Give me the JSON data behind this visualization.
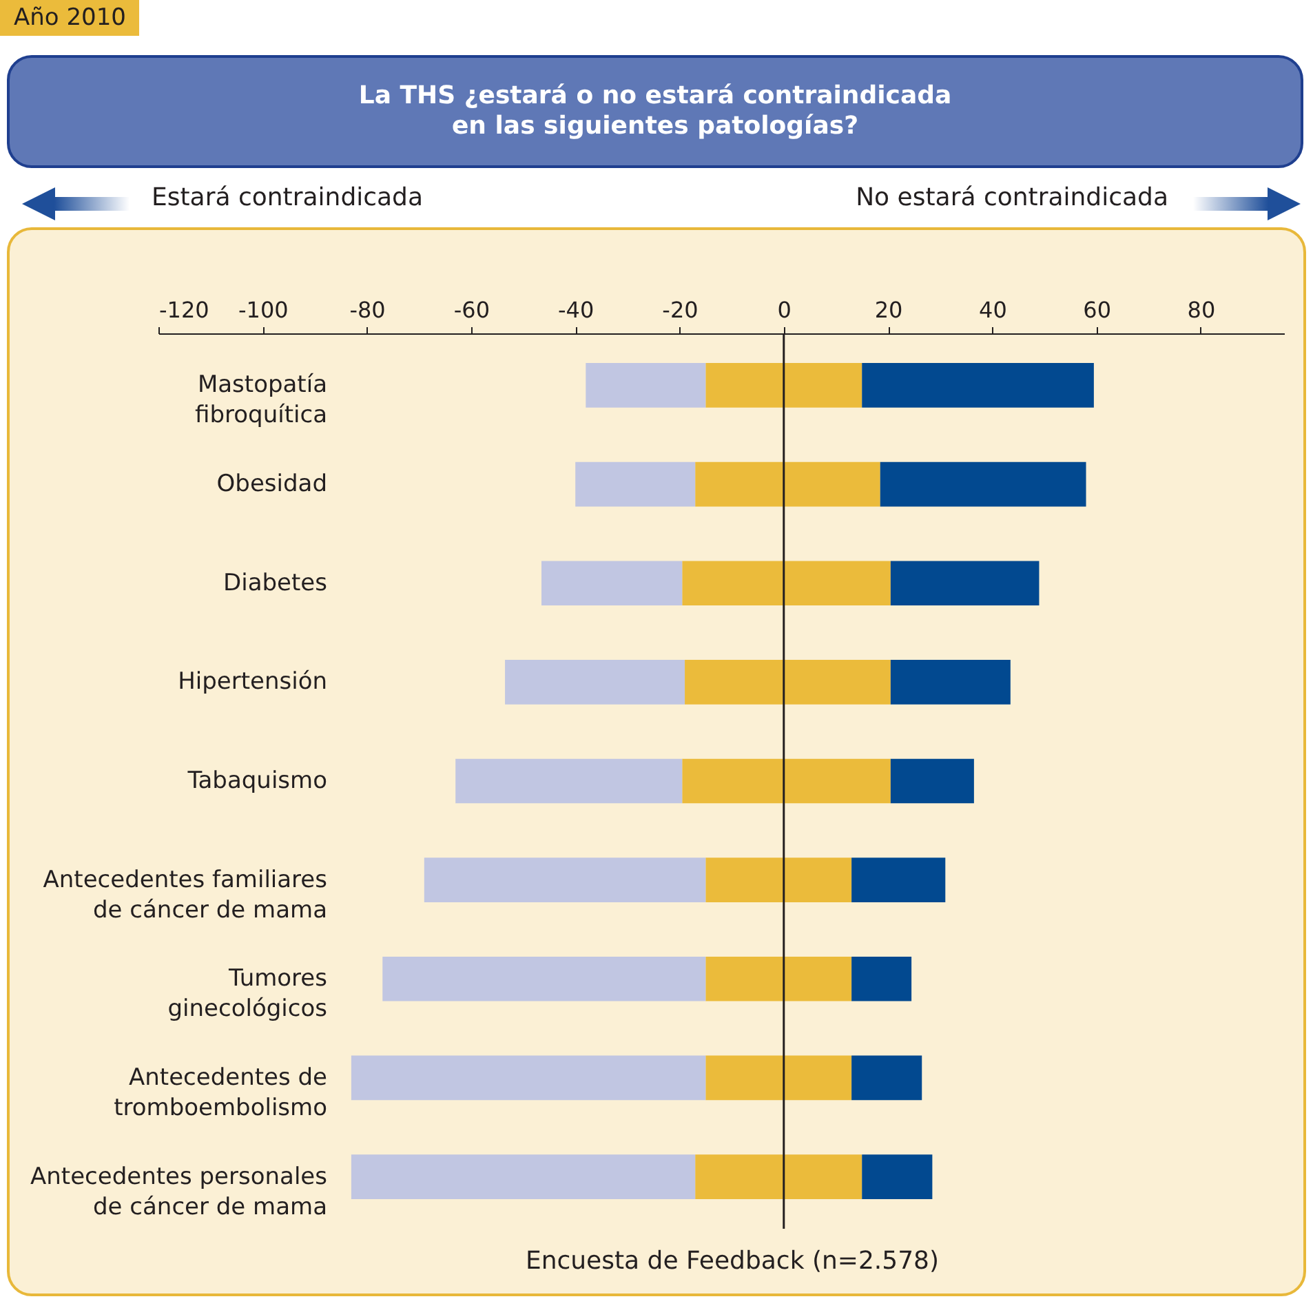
{
  "chart_data": {
    "type": "bar",
    "orientation": "horizontal",
    "stacked": true,
    "title": "La THS ¿estará o no estará contraindicada\nen las siguientes patologías?",
    "annotations": [
      "Año 2010",
      "Estará contraindicada",
      "No estará contraindicada",
      "Encuesta de Feedback (n=2.578)"
    ],
    "categories": [
      "Mastopatía\nfibroquítica",
      "Obesidad",
      "Diabetes",
      "Hipertensión",
      "Tabaquismo",
      "Antecedentes familiares\nde cáncer de mama",
      "Tumores\nginecológicos",
      "Antecedentes de\ntromboembolismo",
      "Antecedentes personales\nde cáncer de mama"
    ],
    "series": [
      {
        "color": "#ebbb3b",
        "values": [
          -15,
          -17,
          -19.5,
          -19,
          -19.5,
          -15,
          -15,
          -15,
          -17
        ]
      },
      {
        "color": "#c1c6e2",
        "values": [
          -23,
          -23,
          -27,
          -34.5,
          -43.5,
          -54,
          -62,
          -68,
          -66
        ]
      },
      {
        "color": "#ebbb3b",
        "values": [
          15,
          18.5,
          20.5,
          20.5,
          20.5,
          13,
          13,
          13,
          15
        ]
      },
      {
        "color": "#024990",
        "values": [
          44.5,
          39.5,
          28.5,
          23,
          16,
          18,
          11.5,
          13.5,
          13.5
        ]
      }
    ],
    "xlim": [
      -120,
      96
    ],
    "xticks": [
      -120,
      -100,
      -80,
      -60,
      -40,
      -20,
      0,
      20,
      40,
      60,
      80
    ],
    "ref_lines": [
      {
        "axis": "x",
        "value": 0
      }
    ]
  }
}
